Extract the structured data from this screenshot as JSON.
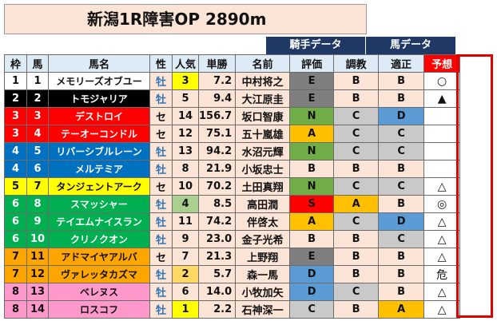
{
  "title": "新潟1R障害OP 2890m",
  "groups": {
    "jockey": "騎手データ",
    "horse": "馬データ"
  },
  "headers": [
    "枠",
    "馬",
    "馬名",
    "性",
    "人気",
    "単勝",
    "名前",
    "評価",
    "調教",
    "適正",
    "予想"
  ],
  "colors": {
    "waku": [
      "#ffffff",
      "#000000",
      "#ff0000",
      "#0070c0",
      "#ffff00",
      "#00b050",
      "#ffa500",
      "#ff99cc"
    ],
    "rowBg": "#fce5d6",
    "grade": {
      "E": "#7f7f7f",
      "A": "#ffc000",
      "N": "#70ad47",
      "S": "#ff0000",
      "B": "#fce5d6",
      "C": "#c9c9c9",
      "D": "#5b9bd5"
    },
    "popular": {
      "1": "#ffff00",
      "2": "#ffd966",
      "3": "#ffff00",
      "4": "#a9d08e"
    }
  },
  "rows": [
    {
      "waku": "1",
      "umaban": "1",
      "name": "メモリーズオブユー",
      "sex": "牡",
      "pop": "3",
      "odds": "7.2",
      "jockey": "中村将之",
      "eval": "E",
      "train": "B",
      "fit": "B",
      "pred": "○"
    },
    {
      "waku": "2",
      "umaban": "2",
      "name": "トモジャリア",
      "sex": "牡",
      "pop": "5",
      "odds": "9.4",
      "jockey": "大江原圭",
      "eval": "E",
      "train": "B",
      "fit": "B",
      "pred": "▲"
    },
    {
      "waku": "3",
      "umaban": "3",
      "name": "デストロイ",
      "sex": "セ",
      "pop": "14",
      "odds": "156.7",
      "jockey": "坂口智康",
      "eval": "N",
      "train": "C",
      "fit": "D",
      "pred": ""
    },
    {
      "waku": "3",
      "umaban": "4",
      "name": "テーオーコンドル",
      "sex": "セ",
      "pop": "12",
      "odds": "75.1",
      "jockey": "五十嵐雄",
      "eval": "A",
      "train": "C",
      "fit": "C",
      "pred": ""
    },
    {
      "waku": "4",
      "umaban": "5",
      "name": "リバーシブルレーン",
      "sex": "牡",
      "pop": "13",
      "odds": "94.2",
      "jockey": "水沼元輝",
      "eval": "N",
      "train": "C",
      "fit": "C",
      "pred": ""
    },
    {
      "waku": "4",
      "umaban": "6",
      "name": "メルテミア",
      "sex": "牡",
      "pop": "8",
      "odds": "21.9",
      "jockey": "小坂忠士",
      "eval": "B",
      "train": "B",
      "fit": "B",
      "pred": ""
    },
    {
      "waku": "5",
      "umaban": "7",
      "name": "タンジェントアーク",
      "sex": "セ",
      "pop": "10",
      "odds": "70.2",
      "jockey": "土田真翔",
      "eval": "N",
      "train": "C",
      "fit": "C",
      "pred": "△"
    },
    {
      "waku": "6",
      "umaban": "8",
      "name": "スマッシャー",
      "sex": "牡",
      "pop": "4",
      "odds": "8.5",
      "jockey": "高田潤",
      "eval": "S",
      "train": "A",
      "fit": "B",
      "pred": "◎"
    },
    {
      "waku": "6",
      "umaban": "9",
      "name": "テイエムナイスラン",
      "sex": "牡",
      "pop": "11",
      "odds": "74.2",
      "jockey": "伴啓太",
      "eval": "A",
      "train": "C",
      "fit": "D",
      "pred": "△"
    },
    {
      "waku": "6",
      "umaban": "10",
      "name": "クリノクオン",
      "sex": "牡",
      "pop": "9",
      "odds": "23.0",
      "jockey": "金子光希",
      "eval": "B",
      "train": "B",
      "fit": "C",
      "pred": "△"
    },
    {
      "waku": "7",
      "umaban": "11",
      "name": "アドマイヤアルバ",
      "sex": "セ",
      "pop": "7",
      "odds": "21.3",
      "jockey": "上野翔",
      "eval": "E",
      "train": "B",
      "fit": "B",
      "pred": "△"
    },
    {
      "waku": "7",
      "umaban": "12",
      "name": "ヴァレッタカズマ",
      "sex": "牡",
      "pop": "2",
      "odds": "5.7",
      "jockey": "森一馬",
      "eval": "D",
      "train": "B",
      "fit": "B",
      "pred": "危"
    },
    {
      "waku": "8",
      "umaban": "13",
      "name": "ベレヌス",
      "sex": "牡",
      "pop": "6",
      "odds": "14.0",
      "jockey": "小牧加矢",
      "eval": "D",
      "train": "C",
      "fit": "B",
      "pred": "△"
    },
    {
      "waku": "8",
      "umaban": "14",
      "name": "ロスコフ",
      "sex": "牡",
      "pop": "1",
      "odds": "2.2",
      "jockey": "石神深一",
      "eval": "C",
      "train": "B",
      "fit": "A",
      "pred": "△"
    }
  ]
}
